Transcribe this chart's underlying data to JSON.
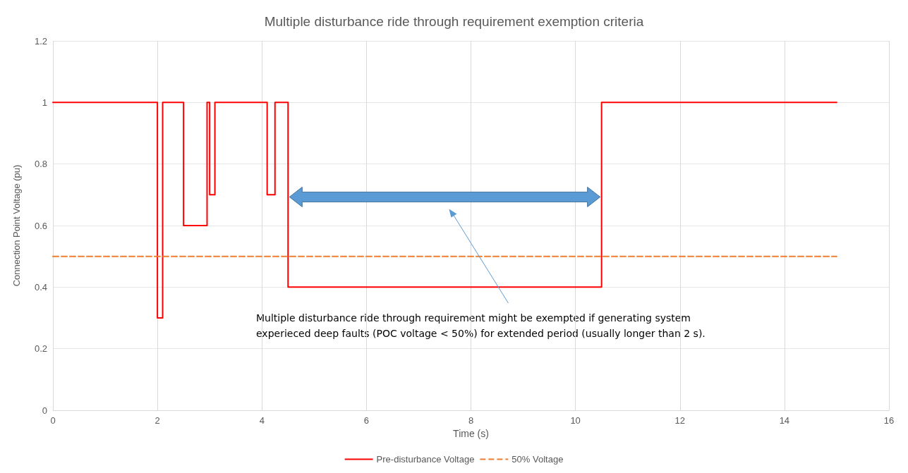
{
  "chart_data": {
    "type": "line",
    "title": "Multiple disturbance ride through requirement exemption criteria",
    "xlabel": "Time (s)",
    "ylabel": "Connection Point Voltage (pu)",
    "series": [
      {
        "name": "Pre-disturbance Voltage",
        "type": "step",
        "color": "#ff0000",
        "line_style": "solid",
        "x": [
          0,
          2,
          2.1,
          2.5,
          2.95,
          3,
          3.1,
          4.1,
          4.25,
          4.5,
          10.5,
          15
        ],
        "values": [
          1,
          0.3,
          1,
          0.6,
          1,
          0.7,
          1,
          0.7,
          1,
          0.4,
          1,
          1
        ]
      },
      {
        "name": "50% Voltage",
        "color": "#ed7d31",
        "line_style": "dashed",
        "x": [
          0,
          15
        ],
        "values": [
          0.5,
          0.5
        ]
      }
    ],
    "annotations": [
      "Multiple disturbance ride through requirement might be exempted if generating system experieced deep faults (POC voltage < 50%) for extended period (usually longer than 2 s)."
    ],
    "xlim": [
      0,
      16
    ],
    "xticks": [
      0,
      2,
      4,
      6,
      8,
      10,
      12,
      14,
      16
    ],
    "ylim": [
      0,
      1.2
    ],
    "yticks": [
      0,
      0.2,
      0.4,
      0.6,
      0.8,
      1,
      1.2
    ],
    "grid": true,
    "legend": "bottom",
    "marker": "none"
  }
}
